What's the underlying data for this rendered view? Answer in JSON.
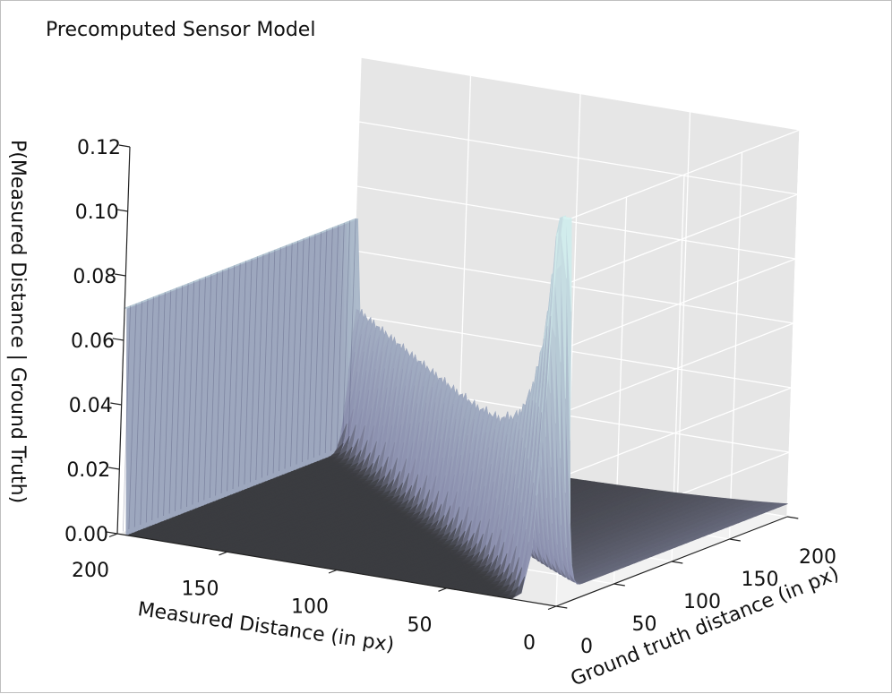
{
  "chart_data": {
    "type": "surface",
    "title": "Precomputed Sensor Model",
    "xlabel": "Measured Distance (in px)",
    "ylabel": "Ground truth distance (in px)",
    "zlabel": "P(Measured Distance | Ground Truth)",
    "x_ticks": [
      "0",
      "50",
      "100",
      "150",
      "200"
    ],
    "y_ticks": [
      "0",
      "50",
      "100",
      "150",
      "200"
    ],
    "z_ticks": [
      "0.00",
      "0.02",
      "0.04",
      "0.06",
      "0.08",
      "0.10",
      "0.12"
    ],
    "xlim": [
      0,
      200
    ],
    "ylim": [
      0,
      200
    ],
    "zlim": [
      0,
      0.12
    ],
    "grid": true,
    "colormap": "bone",
    "colors": {
      "wall_low": "#8b8fae",
      "wall_high": "#d6f2f0",
      "floor": "#3b3c40",
      "pane": "#f2f2f2"
    },
    "components": [
      {
        "name": "max-range wall",
        "measured_distance": 200,
        "probability": 0.07
      },
      {
        "name": "hit ridge",
        "rule": "measured_distance = ground_truth",
        "peak_probability_near_zero": 0.125,
        "peak_probability_at_200": 0.04
      },
      {
        "name": "short-reading decay",
        "rule": "decays as measured distance increases"
      }
    ]
  }
}
